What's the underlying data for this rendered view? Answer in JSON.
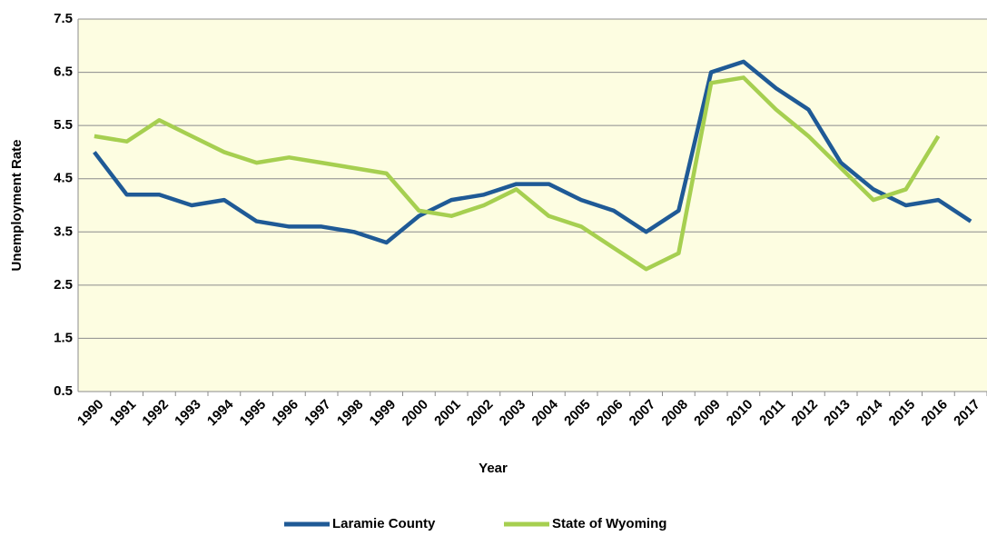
{
  "chart_data": {
    "type": "line",
    "x_label": "Year",
    "y_label": "Unemployment Rate",
    "categories": [
      "1990",
      "1991",
      "1992",
      "1993",
      "1994",
      "1995",
      "1996",
      "1997",
      "1998",
      "1999",
      "2000",
      "2001",
      "2002",
      "2003",
      "2004",
      "2005",
      "2006",
      "2007",
      "2008",
      "2009",
      "2010",
      "2011",
      "2012",
      "2013",
      "2014",
      "2015",
      "2016",
      "2017"
    ],
    "series": [
      {
        "name": "Laramie County",
        "color": "#1f5a96",
        "values": [
          5.0,
          4.2,
          4.2,
          4.0,
          4.1,
          3.7,
          3.6,
          3.6,
          3.5,
          3.3,
          3.8,
          4.1,
          4.2,
          4.4,
          4.4,
          4.1,
          3.9,
          3.5,
          3.9,
          6.5,
          6.7,
          6.2,
          5.8,
          4.8,
          4.3,
          4.0,
          4.1,
          3.7
        ]
      },
      {
        "name": "State of Wyoming",
        "color": "#a6cf50",
        "values": [
          5.3,
          5.2,
          5.6,
          5.3,
          5.0,
          4.8,
          4.9,
          4.8,
          4.7,
          4.6,
          3.9,
          3.8,
          4.0,
          4.3,
          3.8,
          3.6,
          3.2,
          2.8,
          3.1,
          6.3,
          6.4,
          5.8,
          5.3,
          4.7,
          4.1,
          4.3,
          5.3,
          null
        ]
      }
    ],
    "ylim": [
      0.5,
      7.5
    ],
    "yticks": [
      0.5,
      1.5,
      2.5,
      3.5,
      4.5,
      5.5,
      6.5,
      7.5
    ],
    "grid": true,
    "legend": "bottom",
    "background": "#fdfde1"
  }
}
